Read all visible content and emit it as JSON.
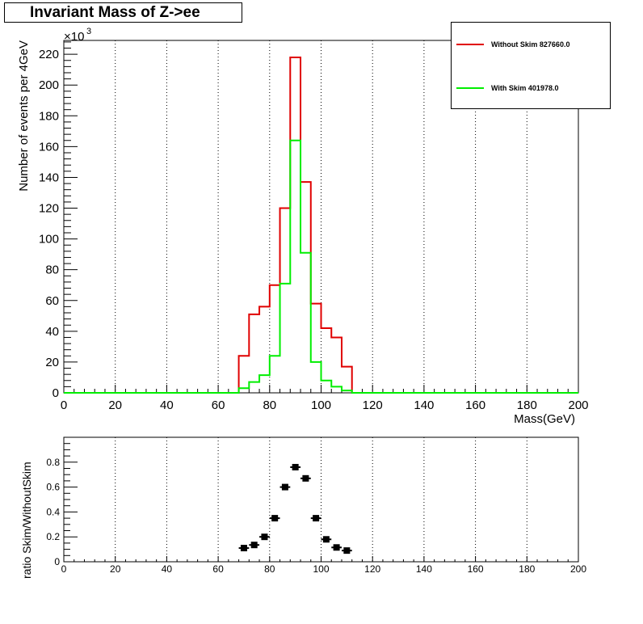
{
  "title": "Invariant Mass of Z->ee",
  "chart_data": [
    {
      "type": "histogram",
      "xlabel": "Mass(GeV)",
      "ylabel": "Number of events per 4GeV",
      "y_exponent_label": "×10",
      "y_exponent_power": "3",
      "xlim": [
        0,
        200
      ],
      "ylim": [
        0,
        229
      ],
      "x_ticks": [
        "0",
        "20",
        "40",
        "60",
        "80",
        "100",
        "120",
        "140",
        "160",
        "180",
        "200"
      ],
      "y_ticks": [
        "0",
        "20",
        "40",
        "60",
        "80",
        "100",
        "120",
        "140",
        "160",
        "180",
        "200",
        "220"
      ],
      "grid_x": true,
      "grid_y": false,
      "bin_width": 4,
      "legend_position": "top-right",
      "series": [
        {
          "name": "Without Skim 827660.0",
          "color": "#e00000",
          "bins": [
            {
              "x0": 68,
              "y": 24
            },
            {
              "x0": 72,
              "y": 51
            },
            {
              "x0": 76,
              "y": 56
            },
            {
              "x0": 80,
              "y": 70
            },
            {
              "x0": 84,
              "y": 120
            },
            {
              "x0": 88,
              "y": 218
            },
            {
              "x0": 92,
              "y": 137
            },
            {
              "x0": 96,
              "y": 58
            },
            {
              "x0": 100,
              "y": 42
            },
            {
              "x0": 104,
              "y": 36
            },
            {
              "x0": 108,
              "y": 17
            }
          ]
        },
        {
          "name": "With Skim 401978.0",
          "color": "#00ee00",
          "bins": [
            {
              "x0": 68,
              "y": 3
            },
            {
              "x0": 72,
              "y": 7
            },
            {
              "x0": 76,
              "y": 11.5
            },
            {
              "x0": 80,
              "y": 24
            },
            {
              "x0": 84,
              "y": 71
            },
            {
              "x0": 88,
              "y": 164
            },
            {
              "x0": 92,
              "y": 91
            },
            {
              "x0": 96,
              "y": 20
            },
            {
              "x0": 100,
              "y": 8
            },
            {
              "x0": 104,
              "y": 4
            },
            {
              "x0": 108,
              "y": 1.5
            }
          ]
        }
      ]
    },
    {
      "type": "scatter",
      "ylabel": "ratio Skim/WithoutSkim",
      "xlim": [
        0,
        200
      ],
      "ylim": [
        0,
        1.0
      ],
      "x_ticks": [
        "0",
        "20",
        "40",
        "60",
        "80",
        "100",
        "120",
        "140",
        "160",
        "180",
        "200"
      ],
      "y_ticks": [
        "0",
        "0.2",
        "0.4",
        "0.6",
        "0.8"
      ],
      "grid_x": true,
      "points": [
        {
          "x": 70,
          "y": 0.11
        },
        {
          "x": 74,
          "y": 0.135
        },
        {
          "x": 78,
          "y": 0.2
        },
        {
          "x": 82,
          "y": 0.35
        },
        {
          "x": 86,
          "y": 0.6
        },
        {
          "x": 90,
          "y": 0.76
        },
        {
          "x": 94,
          "y": 0.67
        },
        {
          "x": 98,
          "y": 0.35
        },
        {
          "x": 102,
          "y": 0.18
        },
        {
          "x": 106,
          "y": 0.115
        },
        {
          "x": 110,
          "y": 0.09
        }
      ]
    }
  ]
}
